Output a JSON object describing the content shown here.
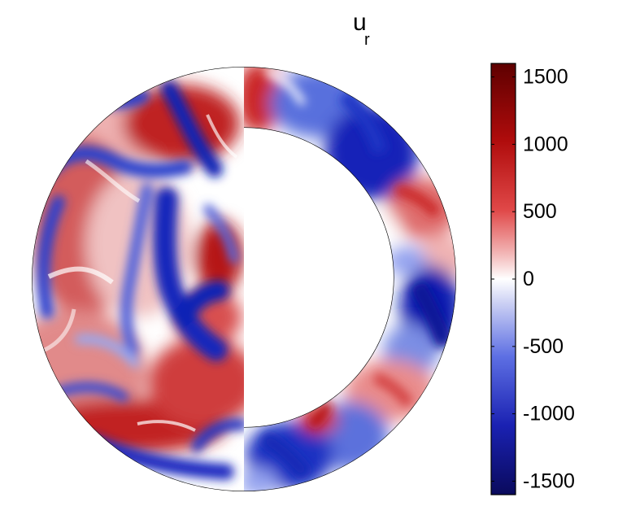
{
  "chart_data": {
    "type": "heatmap",
    "title": "u",
    "title_subscript": "r",
    "colorbar": {
      "ticks": [
        1500,
        1000,
        500,
        0,
        -500,
        -1000,
        -1500
      ],
      "tick_labels": [
        "1500",
        "1000",
        "500",
        "0",
        "-500",
        "-1000",
        "-1500"
      ],
      "range": [
        -1600,
        1600
      ],
      "colors": {
        "low": "#0a0a5c",
        "mid_low": "#2433c4",
        "zero": "#ffffff",
        "mid_high": "#d33434",
        "high": "#5e0000"
      }
    },
    "panels": [
      "left hemisphere surface view",
      "right shell cross-section"
    ]
  }
}
